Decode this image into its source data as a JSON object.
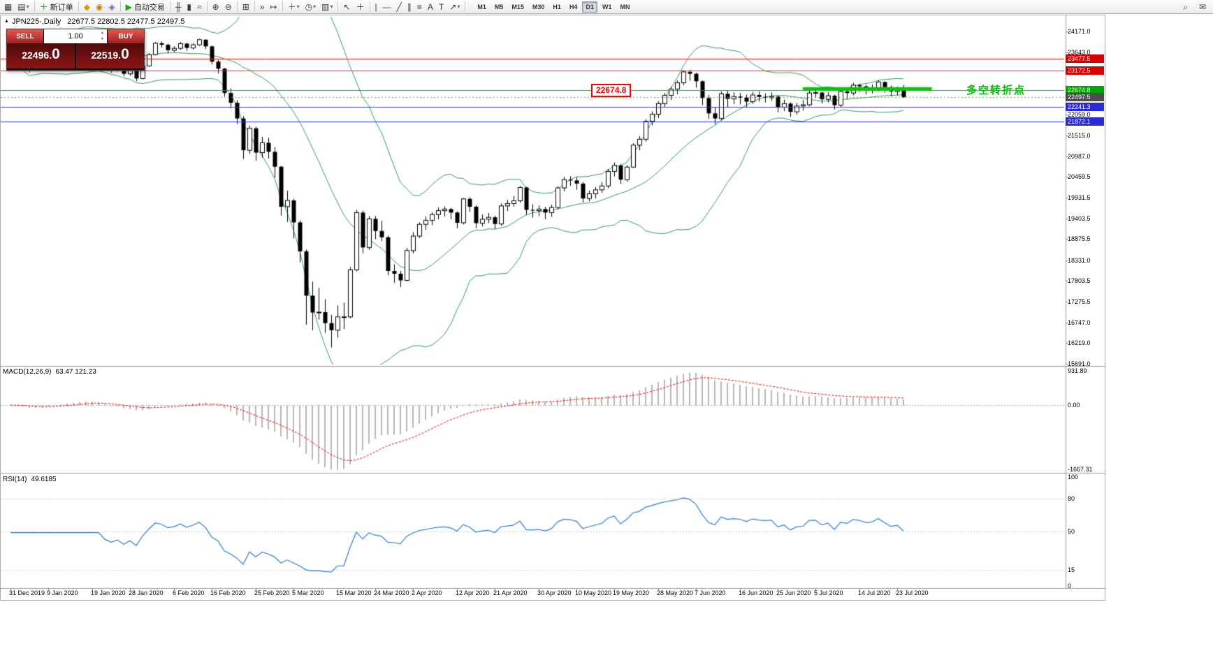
{
  "window": {
    "collapse_marker": "▲",
    "symbol_period": "JPN225-,Daily",
    "ohlc": "22677.5 22802.5 22477.5 22497.5"
  },
  "toolbar": {
    "items": [
      {
        "name": "new-chart-icon",
        "glyph": "▦"
      },
      {
        "name": "profiles-icon",
        "glyph": "▤",
        "dropdown": true
      },
      {
        "sep": true
      },
      {
        "name": "new-order-button",
        "icon_name": "new-order-plus-icon",
        "glyph": "＋",
        "color": "#18a018",
        "label": "新订单"
      },
      {
        "sep": true
      },
      {
        "name": "metaeditor-icon",
        "glyph": "◆",
        "color": "#d99c0a"
      },
      {
        "name": "market-icon",
        "glyph": "◉",
        "color": "#b8860b"
      },
      {
        "name": "strategy-tester-icon",
        "glyph": "◈",
        "color": "#7a5fb5"
      },
      {
        "sep": true
      },
      {
        "name": "autotrading-button",
        "icon_name": "autotrading-play-icon",
        "glyph": "▶",
        "color": "#18a018",
        "label": "自动交易"
      },
      {
        "sep": true
      },
      {
        "name": "bar-chart-type-icon",
        "glyph": "╫"
      },
      {
        "name": "candlestick-type-icon",
        "glyph": "▮"
      },
      {
        "name": "line-chart-type-icon",
        "glyph": "≈"
      },
      {
        "sep": true
      },
      {
        "name": "zoom-in-icon",
        "glyph": "⊕"
      },
      {
        "name": "zoom-out-icon",
        "glyph": "⊖"
      },
      {
        "sep": true
      },
      {
        "name": "tile-windows-icon",
        "glyph": "⊞"
      },
      {
        "sep": true
      },
      {
        "name": "auto-scroll-icon",
        "glyph": "»"
      },
      {
        "name": "chart-shift-icon",
        "glyph": "↦"
      },
      {
        "sep": true
      },
      {
        "name": "indicators-icon",
        "glyph": "＋",
        "color": "#18a018",
        "dropdown": true
      },
      {
        "name": "periods-icon",
        "glyph": "◷",
        "dropdown": true
      },
      {
        "name": "templates-icon",
        "glyph": "▥",
        "dropdown": true
      },
      {
        "sep": true
      },
      {
        "name": "cursor-icon",
        "glyph": "↖"
      },
      {
        "name": "crosshair-icon",
        "glyph": "＋"
      },
      {
        "sep": true
      },
      {
        "name": "vertical-line-icon",
        "glyph": "|"
      },
      {
        "name": "horizontal-line-icon",
        "glyph": "—"
      },
      {
        "name": "trendline-icon",
        "glyph": "╱"
      },
      {
        "name": "channel-icon",
        "glyph": "∥"
      },
      {
        "name": "fibonacci-icon",
        "glyph": "≡"
      },
      {
        "name": "text-icon",
        "glyph": "A"
      },
      {
        "name": "label-icon",
        "glyph": "T"
      },
      {
        "name": "arrows-icon",
        "glyph": "↗",
        "dropdown": true
      },
      {
        "sep": true
      }
    ],
    "timeframes": [
      "M1",
      "M5",
      "M15",
      "M30",
      "H1",
      "H4",
      "D1",
      "W1",
      "MN"
    ],
    "active_timeframe": "D1",
    "right_items": [
      {
        "name": "search-icon",
        "glyph": "⌕"
      },
      {
        "name": "community-icon",
        "glyph": "✉"
      }
    ]
  },
  "trade_panel": {
    "sell_label": "SELL",
    "buy_label": "BUY",
    "volume": "1.00",
    "sell_price": {
      "int": "22496",
      "dot": ".",
      "dec": "0"
    },
    "buy_price": {
      "int": "22519",
      "dot": ".",
      "dec": "0"
    }
  },
  "main_chart": {
    "annotation": {
      "text": "多空转折点",
      "color": "#00c300"
    },
    "line_label": "22674.8",
    "price_scale": {
      "badges": [
        {
          "label": "23477.5",
          "value": 23477.5,
          "bg": "#d80000"
        },
        {
          "label": "23172.5",
          "value": 23172.5,
          "bg": "#d80000"
        },
        {
          "label": "22674.8",
          "value": 22674.8,
          "bg": "#00a400"
        },
        {
          "label": "22497.5",
          "value": 22497.5,
          "bg": "#4d4d4d"
        },
        {
          "label": "22241.3",
          "value": 22241.3,
          "bg": "#2a2ad8"
        },
        {
          "label": "21872.1",
          "value": 21872.1,
          "bg": "#2a2ad8"
        }
      ]
    }
  },
  "macd_panel": {
    "name": "MACD(12,26,9)",
    "values": "63.47 121.23",
    "scale": [
      "931.89",
      "0.00",
      "-1667.31"
    ],
    "histogram_color": "#b6b6b6",
    "signal_color": "#ff0000"
  },
  "rsi_panel": {
    "name": "RSI(14)",
    "value": "49.6185",
    "levels": [
      "100",
      "80",
      "50",
      "15",
      "0"
    ],
    "line_color": "#2b7bd4"
  },
  "colors": {
    "bollinger": "#2e9e5b",
    "candle_up_fill": "#ffffff",
    "candle_down_fill": "#000000",
    "candle_outline": "#000000",
    "resistance_line": "#ff2020",
    "support_line": "#3030ff",
    "pivot_line": "#00b43c",
    "bid_line": "#8a8a8a",
    "green_segment": "#00cc00"
  },
  "chart_data": {
    "type": "candlestick",
    "title": "JPN225-,Daily",
    "symbol": "JPN225-",
    "period": "Daily",
    "y_range": [
      15673,
      24545
    ],
    "y_ticks": [
      [
        24171.0,
        "24171.0"
      ],
      [
        23643.0,
        "23643.0"
      ],
      [
        22059.0,
        "22059.0"
      ],
      [
        21515.0,
        "21515.0"
      ],
      [
        20987.0,
        "20987.0"
      ],
      [
        20459.5,
        "20459.5"
      ],
      [
        19931.5,
        "19931.5"
      ],
      [
        19403.5,
        "19403.5"
      ],
      [
        18875.5,
        "18875.5"
      ],
      [
        18331.0,
        "18331.0"
      ],
      [
        17803.5,
        "17803.5"
      ],
      [
        17275.5,
        "17275.5"
      ],
      [
        16747.0,
        "16747.0"
      ],
      [
        16219.0,
        "16219.0"
      ],
      [
        15691.0,
        "15691.0"
      ]
    ],
    "x_axis_labels": [
      [
        0,
        "31 Dec 2019"
      ],
      [
        6,
        "9 Jan 2020"
      ],
      [
        13,
        "19 Jan 2020"
      ],
      [
        19,
        "28 Jan 2020"
      ],
      [
        26,
        "6 Feb 2020"
      ],
      [
        32,
        "16 Feb 2020"
      ],
      [
        39,
        "25 Feb 2020"
      ],
      [
        45,
        "5 Mar 2020"
      ],
      [
        52,
        "15 Mar 2020"
      ],
      [
        58,
        "24 Mar 2020"
      ],
      [
        64,
        "2 Apr 2020"
      ],
      [
        71,
        "12 Apr 2020"
      ],
      [
        77,
        "21 Apr 2020"
      ],
      [
        84,
        "30 Apr 2020"
      ],
      [
        90,
        "10 May 2020"
      ],
      [
        96,
        "19 May 2020"
      ],
      [
        103,
        "28 May 2020"
      ],
      [
        109,
        "7 Jun 2020"
      ],
      [
        116,
        "16 Jun 2020"
      ],
      [
        122,
        "25 Jun 2020"
      ],
      [
        128,
        "5 Jul 2020"
      ],
      [
        135,
        "14 Jul 2020"
      ],
      [
        141,
        "23 Jul 2020"
      ]
    ],
    "hlines": [
      {
        "value": 23477.5,
        "color": "#ff2020",
        "style": "solid"
      },
      {
        "value": 23172.5,
        "color": "#ff2020",
        "style": "solid"
      },
      {
        "value": 22674.8,
        "color": "#00b43c",
        "style": "solid"
      },
      {
        "value": 22497.5,
        "color": "#8a8a8a",
        "style": "dot"
      },
      {
        "value": 22241.3,
        "color": "#3030ff",
        "style": "solid"
      },
      {
        "value": 21872.1,
        "color": "#3030ff",
        "style": "solid"
      }
    ],
    "green_segment": {
      "value": 22705,
      "from_idx": 126,
      "to_idx": 146.5,
      "color": "#00cc00",
      "thickness": 5
    },
    "indicators": [
      {
        "name": "Bollinger Bands",
        "period": 20,
        "deviation": 2
      },
      {
        "name": "MACD",
        "fast": 12,
        "slow": 26,
        "signal": 9,
        "current": "63.47 121.23"
      },
      {
        "name": "RSI",
        "period": 14,
        "current": 49.6185
      }
    ],
    "bollinger": {
      "period": 20,
      "deviation": 2
    },
    "candles": [
      [
        23750,
        23790,
        23610,
        23660
      ],
      [
        23660,
        23700,
        23470,
        23520
      ],
      [
        23520,
        23560,
        23230,
        23280
      ],
      [
        23280,
        23390,
        23130,
        23200
      ],
      [
        23200,
        23400,
        23160,
        23350
      ],
      [
        23350,
        23600,
        23330,
        23560
      ],
      [
        23560,
        23780,
        23540,
        23740
      ],
      [
        23740,
        23890,
        23700,
        23850
      ],
      [
        23850,
        23960,
        23800,
        23920
      ],
      [
        23920,
        24090,
        23890,
        24040
      ],
      [
        24040,
        24060,
        23860,
        23930
      ],
      [
        23930,
        24120,
        23900,
        24080
      ],
      [
        24080,
        24110,
        23980,
        24040
      ],
      [
        24040,
        24060,
        23820,
        23870
      ],
      [
        23870,
        23900,
        23550,
        23620
      ],
      [
        23620,
        23650,
        23270,
        23350
      ],
      [
        23350,
        23400,
        23120,
        23220
      ],
      [
        23220,
        23360,
        23150,
        23290
      ],
      [
        23290,
        23310,
        23020,
        23090
      ],
      [
        23090,
        23270,
        23040,
        23200
      ],
      [
        23200,
        23230,
        22900,
        22970
      ],
      [
        22970,
        23330,
        22950,
        23290
      ],
      [
        23290,
        23620,
        23270,
        23580
      ],
      [
        23580,
        23900,
        23560,
        23870
      ],
      [
        23870,
        23910,
        23760,
        23830
      ],
      [
        23830,
        23860,
        23610,
        23690
      ],
      [
        23690,
        23790,
        23640,
        23740
      ],
      [
        23740,
        23900,
        23700,
        23860
      ],
      [
        23860,
        23880,
        23680,
        23750
      ],
      [
        23750,
        23870,
        23710,
        23830
      ],
      [
        23830,
        23990,
        23800,
        23960
      ],
      [
        23960,
        23970,
        23720,
        23790
      ],
      [
        23790,
        23810,
        23330,
        23400
      ],
      [
        23400,
        23450,
        23100,
        23220
      ],
      [
        23220,
        23240,
        22510,
        22600
      ],
      [
        22600,
        22720,
        22210,
        22350
      ],
      [
        22350,
        22420,
        21810,
        21950
      ],
      [
        21950,
        22010,
        20920,
        21140
      ],
      [
        21140,
        21770,
        21050,
        21700
      ],
      [
        21700,
        21740,
        20870,
        21080
      ],
      [
        21080,
        21480,
        20950,
        21330
      ],
      [
        21330,
        21460,
        20930,
        21100
      ],
      [
        21100,
        21220,
        20440,
        20720
      ],
      [
        20720,
        20740,
        19470,
        19700
      ],
      [
        19700,
        20110,
        19310,
        19860
      ],
      [
        19860,
        19900,
        18890,
        19300
      ],
      [
        19300,
        19350,
        18280,
        18560
      ],
      [
        18560,
        18610,
        16690,
        17430
      ],
      [
        17430,
        17790,
        16550,
        17000
      ],
      [
        17000,
        17630,
        16820,
        17010
      ],
      [
        17010,
        17340,
        16480,
        16730
      ],
      [
        16730,
        16940,
        16110,
        16550
      ],
      [
        16550,
        17180,
        16360,
        16890
      ],
      [
        16890,
        17250,
        16580,
        16890
      ],
      [
        16890,
        18160,
        16850,
        18090
      ],
      [
        18090,
        19620,
        18050,
        19550
      ],
      [
        19550,
        19600,
        18510,
        18660
      ],
      [
        18660,
        19460,
        18600,
        19390
      ],
      [
        19390,
        19460,
        18870,
        19080
      ],
      [
        19080,
        19340,
        18820,
        18920
      ],
      [
        18920,
        18960,
        17950,
        18060
      ],
      [
        18060,
        18230,
        17760,
        17990
      ],
      [
        17990,
        18060,
        17650,
        17820
      ],
      [
        17820,
        18650,
        17800,
        18580
      ],
      [
        18580,
        19050,
        18510,
        18950
      ],
      [
        18950,
        19300,
        18900,
        19250
      ],
      [
        19250,
        19450,
        19110,
        19350
      ],
      [
        19350,
        19560,
        19230,
        19500
      ],
      [
        19500,
        19680,
        19380,
        19600
      ],
      [
        19600,
        19710,
        19450,
        19640
      ],
      [
        19640,
        19670,
        19380,
        19550
      ],
      [
        19550,
        19580,
        19150,
        19290
      ],
      [
        19290,
        19920,
        19250,
        19900
      ],
      [
        19900,
        19940,
        19560,
        19700
      ],
      [
        19700,
        19730,
        19150,
        19280
      ],
      [
        19280,
        19500,
        19200,
        19380
      ],
      [
        19380,
        19540,
        19280,
        19430
      ],
      [
        19430,
        19470,
        19130,
        19260
      ],
      [
        19260,
        19780,
        19210,
        19720
      ],
      [
        19720,
        19870,
        19590,
        19780
      ],
      [
        19780,
        19980,
        19700,
        19850
      ],
      [
        19850,
        20230,
        19800,
        20190
      ],
      [
        20190,
        20210,
        19500,
        19620
      ],
      [
        19620,
        19760,
        19420,
        19600
      ],
      [
        19600,
        19730,
        19460,
        19640
      ],
      [
        19640,
        19700,
        19380,
        19550
      ],
      [
        19550,
        19750,
        19440,
        19680
      ],
      [
        19680,
        20220,
        19630,
        20180
      ],
      [
        20180,
        20460,
        20090,
        20390
      ],
      [
        20390,
        20480,
        20230,
        20370
      ],
      [
        20370,
        20450,
        20130,
        20290
      ],
      [
        20290,
        20330,
        19810,
        19910
      ],
      [
        19910,
        20110,
        19830,
        20030
      ],
      [
        20030,
        20200,
        19910,
        20130
      ],
      [
        20130,
        20330,
        20050,
        20230
      ],
      [
        20230,
        20660,
        20170,
        20600
      ],
      [
        20600,
        20830,
        20470,
        20750
      ],
      [
        20750,
        20790,
        20280,
        20390
      ],
      [
        20390,
        20760,
        20340,
        20710
      ],
      [
        20710,
        21320,
        20690,
        21270
      ],
      [
        21270,
        21500,
        21140,
        21420
      ],
      [
        21420,
        21930,
        21360,
        21880
      ],
      [
        21880,
        22130,
        21780,
        22060
      ],
      [
        22060,
        22390,
        21960,
        22330
      ],
      [
        22330,
        22600,
        22240,
        22540
      ],
      [
        22540,
        22760,
        22420,
        22700
      ],
      [
        22700,
        22920,
        22570,
        22860
      ],
      [
        22860,
        23180,
        22800,
        23140
      ],
      [
        23140,
        23190,
        22910,
        23090
      ],
      [
        23090,
        23120,
        22740,
        22900
      ],
      [
        22900,
        22920,
        22290,
        22470
      ],
      [
        22470,
        22550,
        21940,
        22080
      ],
      [
        22080,
        22230,
        21800,
        21950
      ],
      [
        21950,
        22640,
        21900,
        22580
      ],
      [
        22580,
        22660,
        22240,
        22450
      ],
      [
        22450,
        22620,
        22320,
        22510
      ],
      [
        22510,
        22600,
        22310,
        22480
      ],
      [
        22480,
        22560,
        22230,
        22380
      ],
      [
        22380,
        22630,
        22320,
        22550
      ],
      [
        22550,
        22640,
        22380,
        22500
      ],
      [
        22500,
        22590,
        22360,
        22480
      ],
      [
        22480,
        22620,
        22400,
        22510
      ],
      [
        22510,
        22530,
        22110,
        22240
      ],
      [
        22240,
        22430,
        22140,
        22330
      ],
      [
        22330,
        22360,
        21990,
        22120
      ],
      [
        22120,
        22350,
        22050,
        22270
      ],
      [
        22270,
        22420,
        22150,
        22300
      ],
      [
        22300,
        22680,
        22260,
        22600
      ],
      [
        22600,
        22700,
        22470,
        22610
      ],
      [
        22610,
        22630,
        22330,
        22440
      ],
      [
        22440,
        22620,
        22360,
        22530
      ],
      [
        22530,
        22560,
        22180,
        22290
      ],
      [
        22290,
        22680,
        22230,
        22640
      ],
      [
        22640,
        22710,
        22450,
        22600
      ],
      [
        22600,
        22860,
        22540,
        22800
      ],
      [
        22800,
        22840,
        22630,
        22770
      ],
      [
        22770,
        22810,
        22560,
        22700
      ],
      [
        22700,
        22820,
        22590,
        22720
      ],
      [
        22720,
        22920,
        22640,
        22880
      ],
      [
        22880,
        22900,
        22610,
        22750
      ],
      [
        22750,
        22790,
        22520,
        22640
      ],
      [
        22640,
        22760,
        22540,
        22680
      ],
      [
        22677,
        22802,
        22477,
        22497
      ]
    ]
  }
}
